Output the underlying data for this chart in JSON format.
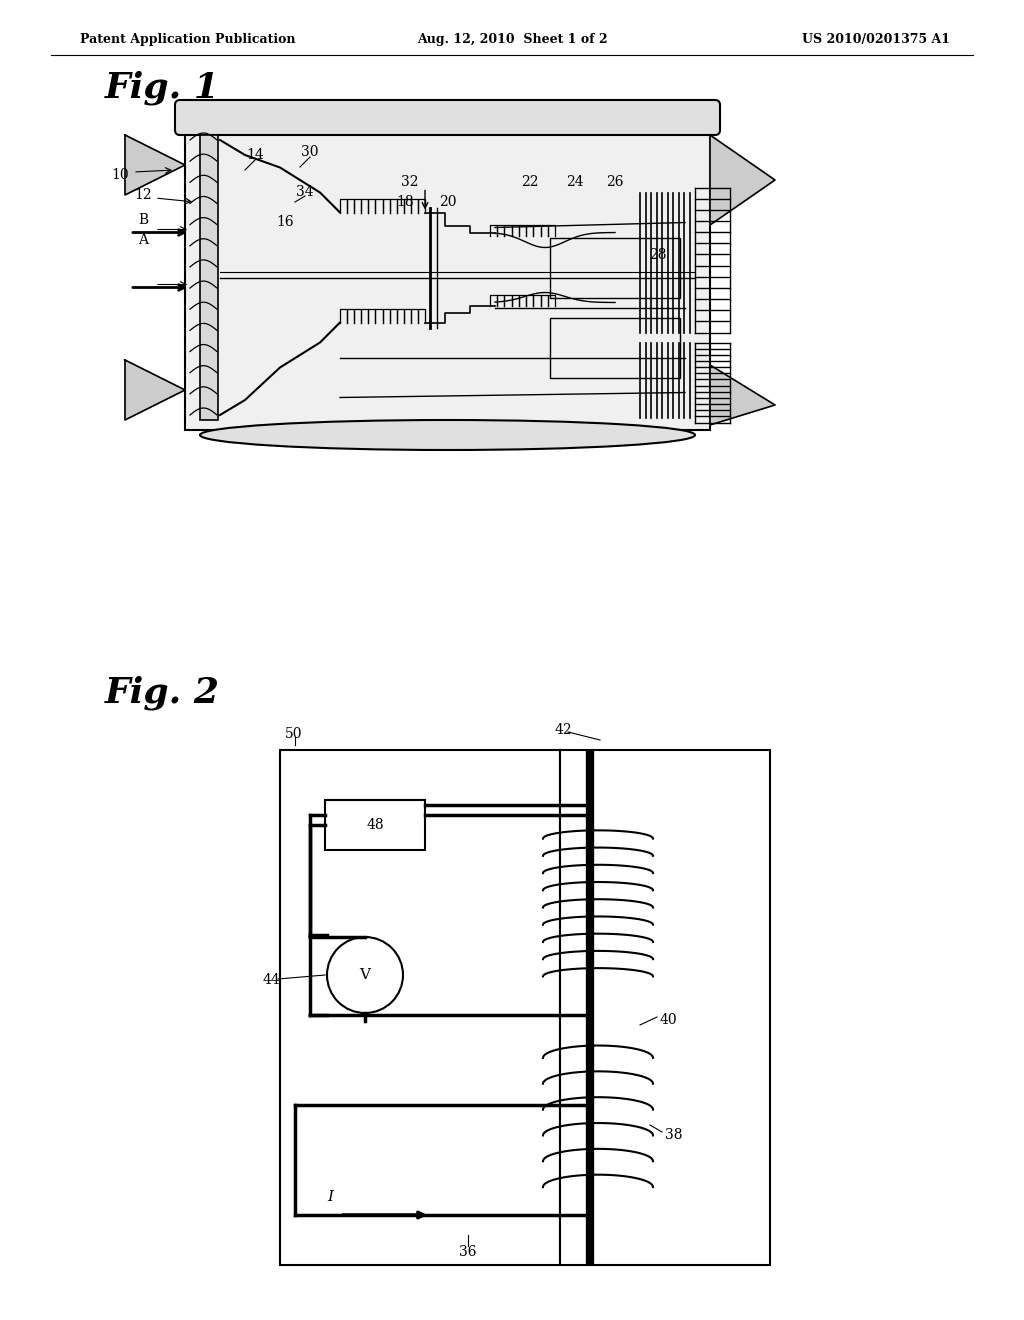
{
  "background_color": "#ffffff",
  "header_left": "Patent Application Publication",
  "header_center": "Aug. 12, 2010  Sheet 1 of 2",
  "header_right": "US 2010/0201375 A1",
  "fig1_label": "Fig. 1",
  "fig2_label": "Fig. 2"
}
